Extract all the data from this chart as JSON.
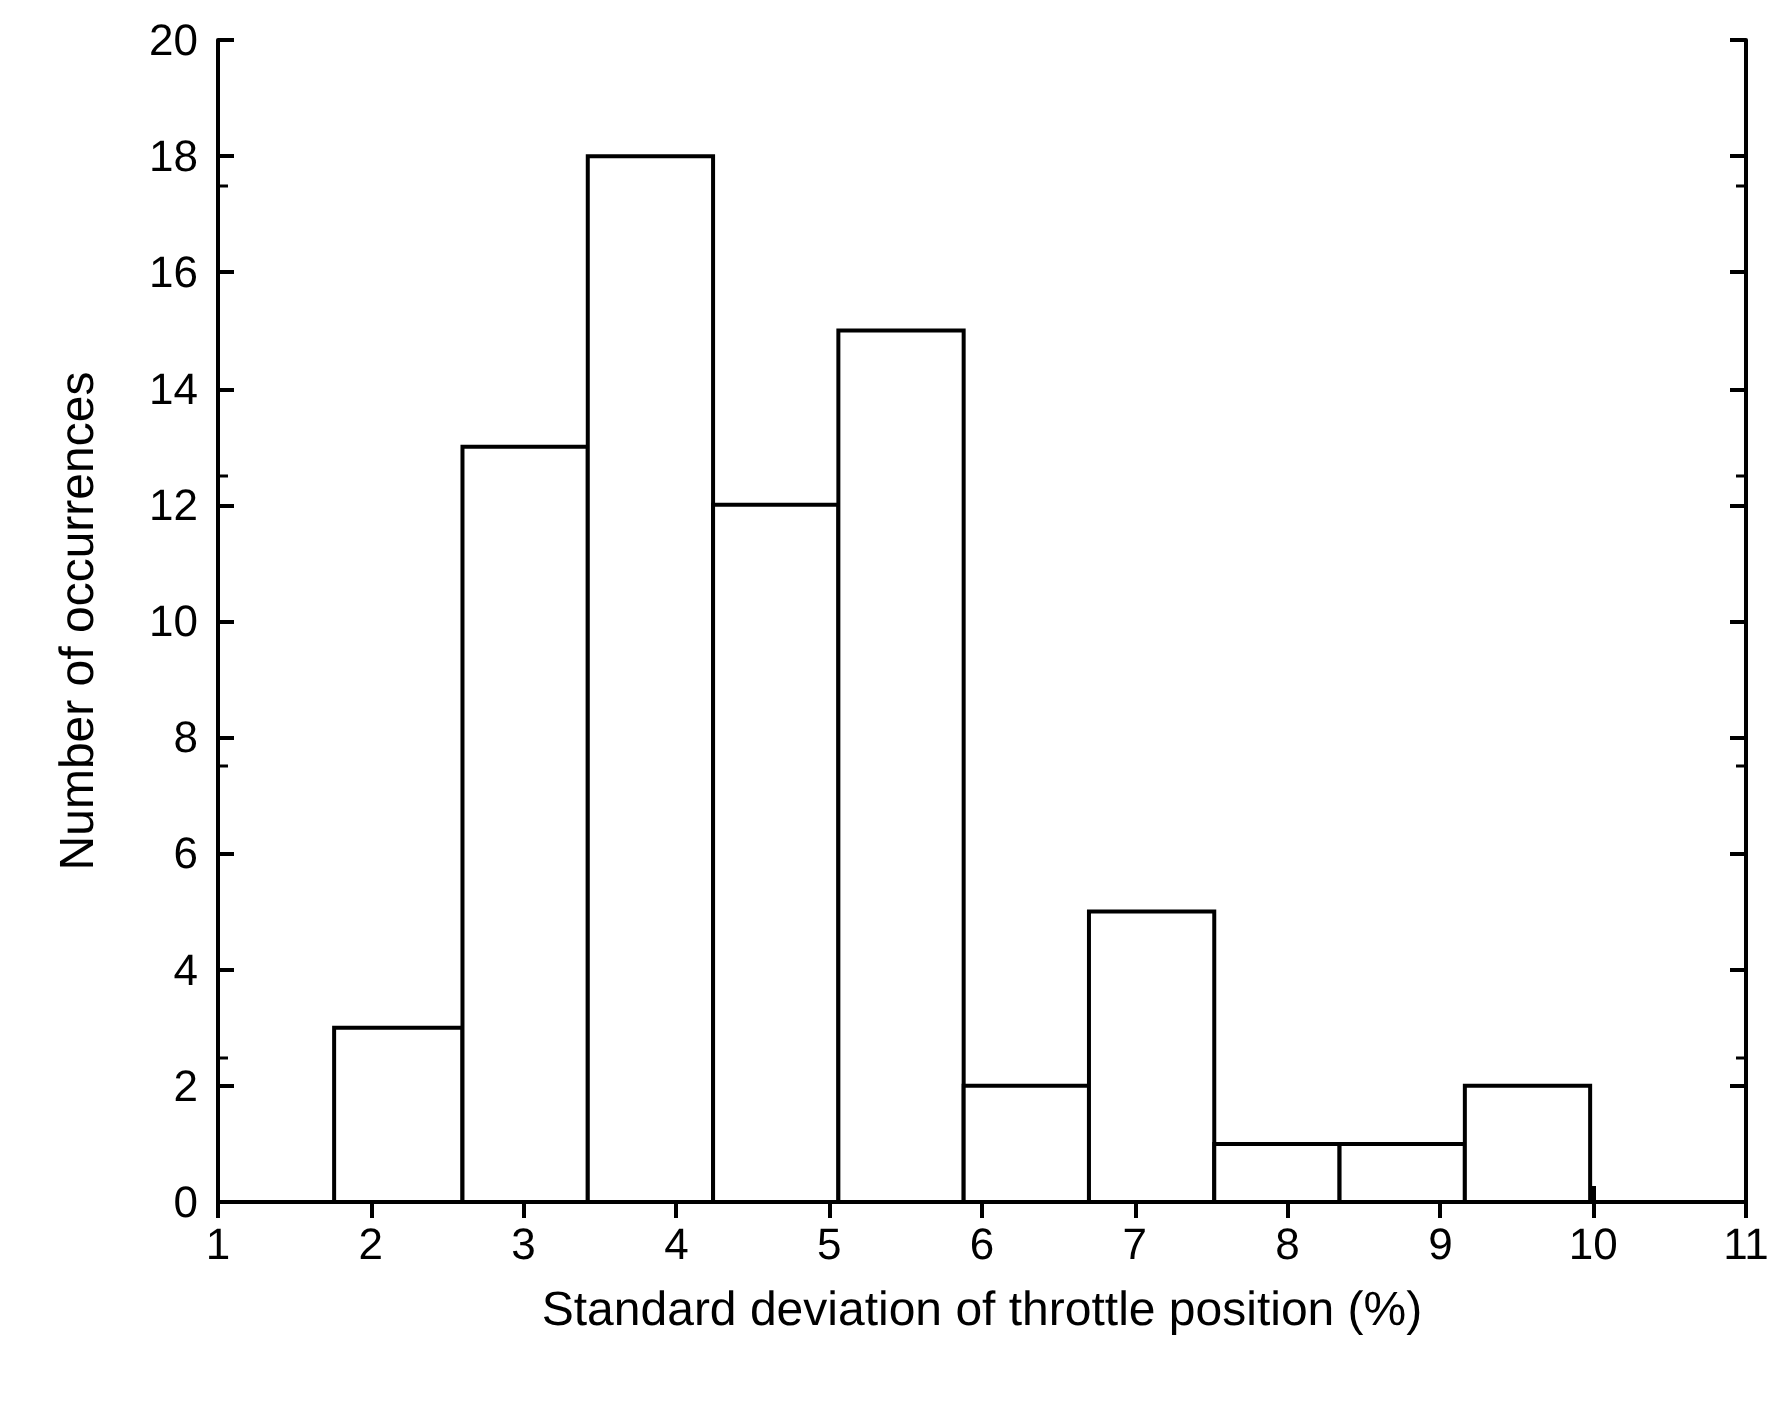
{
  "chart_data": {
    "type": "histogram",
    "xlabel": "Standard deviation of throttle position (%)",
    "ylabel": "Number of occurrences",
    "bins": [
      1.76,
      2.6,
      3.42,
      4.24,
      5.06,
      5.88,
      6.7,
      7.52,
      8.34,
      9.16,
      9.98
    ],
    "values": [
      3,
      13,
      18,
      12,
      15,
      2,
      5,
      1,
      1,
      2
    ],
    "color": "#ffffff",
    "xlim": [
      1,
      11
    ],
    "xticks": [
      1,
      2,
      3,
      4,
      5,
      6,
      7,
      8,
      9,
      10,
      11
    ],
    "ylim": [
      0,
      20
    ],
    "yticks": [
      0,
      2,
      4,
      6,
      8,
      10,
      12,
      14,
      16,
      18,
      20
    ],
    "grid": false
  }
}
